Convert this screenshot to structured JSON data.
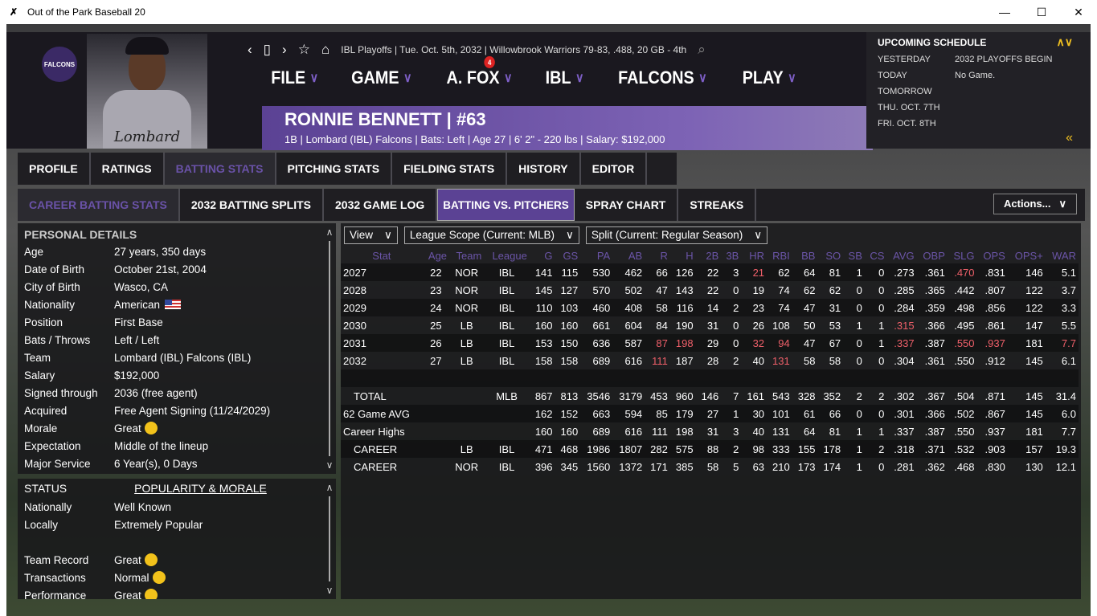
{
  "window": {
    "title": "Out of the Park Baseball 20",
    "minimize": "—",
    "maximize": "☐",
    "close": "✕"
  },
  "topnav": {
    "breadcrumb": "IBL Playoffs  |  Tue. Oct. 5th, 2032  |  Willowbrook Warriors  79-83, .488, 20 GB - 4th"
  },
  "menus": [
    {
      "label": "FILE"
    },
    {
      "label": "GAME"
    },
    {
      "label": "A. FOX",
      "badge": "4"
    },
    {
      "label": "IBL"
    },
    {
      "label": "FALCONS"
    },
    {
      "label": "PLAY"
    }
  ],
  "team_logo_text": "FALCONS",
  "jersey_text": "Lombard",
  "player": {
    "name": "RONNIE BENNETT  |  #63",
    "info": "1B | Lombard (IBL) Falcons  |  Bats: Left  |  Age 27  |  6' 2\" - 220 lbs  |  Salary: $192,000"
  },
  "schedule": {
    "title": "UPCOMING SCHEDULE",
    "rows": [
      {
        "k": "YESTERDAY",
        "v": "2032 PLAYOFFS BEGIN"
      },
      {
        "k": "TODAY",
        "v": "No Game."
      },
      {
        "k": "TOMORROW",
        "v": ""
      },
      {
        "k": "THU. OCT. 7TH",
        "v": ""
      },
      {
        "k": "FRI. OCT. 8TH",
        "v": ""
      }
    ]
  },
  "tabs": [
    "PROFILE",
    "RATINGS",
    "BATTING STATS",
    "PITCHING STATS",
    "FIELDING STATS",
    "HISTORY",
    "EDITOR"
  ],
  "subtabs": [
    "CAREER BATTING STATS",
    "2032 BATTING SPLITS",
    "2032 GAME LOG",
    "BATTING VS. PITCHERS",
    "SPRAY CHART",
    "STREAKS"
  ],
  "actions_label": "Actions...",
  "personal": {
    "title": "PERSONAL DETAILS",
    "rows": [
      {
        "k": "Age",
        "v": "27 years, 350 days"
      },
      {
        "k": "Date of Birth",
        "v": "October 21st, 2004"
      },
      {
        "k": "City of Birth",
        "v": "Wasco, CA"
      },
      {
        "k": "Nationality",
        "v": "American"
      },
      {
        "k": "Position",
        "v": "First Base"
      },
      {
        "k": "Bats / Throws",
        "v": "Left / Left"
      },
      {
        "k": "Team",
        "v": "Lombard (IBL) Falcons (IBL)"
      },
      {
        "k": "Salary",
        "v": "$192,000"
      },
      {
        "k": "Signed through",
        "v": "2036 (free agent)"
      },
      {
        "k": "Acquired",
        "v": "Free Agent Signing (11/24/2029)"
      },
      {
        "k": "Morale",
        "v": "Great"
      },
      {
        "k": "Expectation",
        "v": "Middle of the lineup"
      },
      {
        "k": "Major Service",
        "v": "6 Year(s), 0 Days"
      }
    ]
  },
  "status": {
    "title": "STATUS",
    "popularity_tab": "POPULARITY & MORALE",
    "rows": [
      {
        "k": "Nationally",
        "v": "Well Known"
      },
      {
        "k": "Locally",
        "v": "Extremely Popular"
      },
      {
        "k": "",
        "v": ""
      },
      {
        "k": "Team Record",
        "v": "Great"
      },
      {
        "k": "Transactions",
        "v": "Normal"
      },
      {
        "k": "Performance",
        "v": "Great"
      }
    ]
  },
  "filters": {
    "view": "View",
    "scope": "League Scope (Current: MLB)",
    "split": "Split (Current: Regular Season)"
  },
  "highlight_color": "#f0606a",
  "table": {
    "columns": [
      "Stat",
      "Age",
      "Team",
      "League",
      "G",
      "GS",
      "PA",
      "AB",
      "R",
      "H",
      "2B",
      "3B",
      "HR",
      "RBI",
      "BB",
      "SO",
      "SB",
      "CS",
      "AVG",
      "OBP",
      "SLG",
      "OPS",
      "OPS+",
      "WAR"
    ],
    "rows": [
      {
        "cells": [
          "2027",
          "22",
          "NOR",
          "IBL",
          "141",
          "115",
          "530",
          "462",
          "66",
          "126",
          "22",
          "3",
          "21",
          "62",
          "64",
          "81",
          "1",
          "0",
          ".273",
          ".361",
          ".470",
          ".831",
          "146",
          "5.1"
        ],
        "hl": [
          12,
          20
        ]
      },
      {
        "cells": [
          "2028",
          "23",
          "NOR",
          "IBL",
          "145",
          "127",
          "570",
          "502",
          "47",
          "143",
          "22",
          "0",
          "19",
          "74",
          "62",
          "62",
          "0",
          "0",
          ".285",
          ".365",
          ".442",
          ".807",
          "122",
          "3.7"
        ],
        "hl": []
      },
      {
        "cells": [
          "2029",
          "24",
          "NOR",
          "IBL",
          "110",
          "103",
          "460",
          "408",
          "58",
          "116",
          "14",
          "2",
          "23",
          "74",
          "47",
          "31",
          "0",
          "0",
          ".284",
          ".359",
          ".498",
          ".856",
          "122",
          "3.3"
        ],
        "hl": []
      },
      {
        "cells": [
          "2030",
          "25",
          "LB",
          "IBL",
          "160",
          "160",
          "661",
          "604",
          "84",
          "190",
          "31",
          "0",
          "26",
          "108",
          "50",
          "53",
          "1",
          "1",
          ".315",
          ".366",
          ".495",
          ".861",
          "147",
          "5.5"
        ],
        "hl": [
          18
        ]
      },
      {
        "cells": [
          "2031",
          "26",
          "LB",
          "IBL",
          "153",
          "150",
          "636",
          "587",
          "87",
          "198",
          "29",
          "0",
          "32",
          "94",
          "47",
          "67",
          "0",
          "1",
          ".337",
          ".387",
          ".550",
          ".937",
          "181",
          "7.7"
        ],
        "hl": [
          8,
          9,
          12,
          13,
          18,
          20,
          21,
          23
        ]
      },
      {
        "cells": [
          "2032",
          "27",
          "LB",
          "IBL",
          "158",
          "158",
          "689",
          "616",
          "111",
          "187",
          "28",
          "2",
          "40",
          "131",
          "58",
          "58",
          "0",
          "0",
          ".304",
          ".361",
          ".550",
          ".912",
          "145",
          "6.1"
        ],
        "hl": [
          8,
          13
        ]
      },
      {
        "cells": [
          "",
          "",
          "",
          "",
          "",
          "",
          "",
          "",
          "",
          "",
          "",
          "",
          "",
          "",
          "",
          "",
          "",
          "",
          "",
          "",
          "",
          "",
          "",
          ""
        ],
        "hl": []
      },
      {
        "cells": [
          "TOTAL",
          "",
          "",
          "MLB",
          "867",
          "813",
          "3546",
          "3179",
          "453",
          "960",
          "146",
          "7",
          "161",
          "543",
          "328",
          "352",
          "2",
          "2",
          ".302",
          ".367",
          ".504",
          ".871",
          "145",
          "31.4"
        ],
        "hl": []
      },
      {
        "cells": [
          "62 Game AVG",
          "",
          "",
          "",
          "162",
          "152",
          "663",
          "594",
          "85",
          "179",
          "27",
          "1",
          "30",
          "101",
          "61",
          "66",
          "0",
          "0",
          ".301",
          ".366",
          ".502",
          ".867",
          "145",
          "6.0"
        ],
        "hl": []
      },
      {
        "cells": [
          "Career Highs",
          "",
          "",
          "",
          "160",
          "160",
          "689",
          "616",
          "111",
          "198",
          "31",
          "3",
          "40",
          "131",
          "64",
          "81",
          "1",
          "1",
          ".337",
          ".387",
          ".550",
          ".937",
          "181",
          "7.7"
        ],
        "hl": []
      },
      {
        "cells": [
          "CAREER",
          "",
          "LB",
          "IBL",
          "471",
          "468",
          "1986",
          "1807",
          "282",
          "575",
          "88",
          "2",
          "98",
          "333",
          "155",
          "178",
          "1",
          "2",
          ".318",
          ".371",
          ".532",
          ".903",
          "157",
          "19.3"
        ],
        "hl": []
      },
      {
        "cells": [
          "CAREER",
          "",
          "NOR",
          "IBL",
          "396",
          "345",
          "1560",
          "1372",
          "171",
          "385",
          "58",
          "5",
          "63",
          "210",
          "173",
          "174",
          "1",
          "0",
          ".281",
          ".362",
          ".468",
          ".830",
          "130",
          "12.1"
        ],
        "hl": []
      }
    ]
  }
}
